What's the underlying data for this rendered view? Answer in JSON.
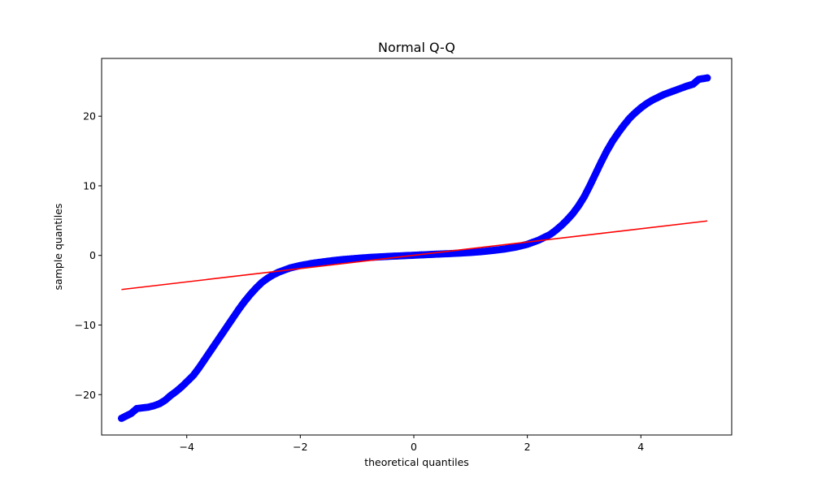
{
  "chart_data": {
    "type": "scatter",
    "title": "Normal Q-Q",
    "xlabel": "theoretical quantiles",
    "ylabel": "sample quantiles",
    "xlim": [
      -5.5,
      5.6
    ],
    "ylim": [
      -25.8,
      28.3
    ],
    "x_ticks": [
      -4,
      -2,
      0,
      2,
      4
    ],
    "x_tick_labels": [
      "−4",
      "−2",
      "0",
      "2",
      "4"
    ],
    "y_ticks": [
      -20,
      -10,
      0,
      10,
      20
    ],
    "y_tick_labels": [
      "−20",
      "−10",
      "0",
      "10",
      "20"
    ],
    "grid": false,
    "series": [
      {
        "kind": "scatter",
        "color": "#0000ff",
        "points": [
          [
            -5.15,
            -23.4
          ],
          [
            -4.98,
            -22.7
          ],
          [
            -4.88,
            -22.0
          ],
          [
            -4.78,
            -21.9
          ],
          [
            -4.68,
            -21.8
          ],
          [
            -4.58,
            -21.6
          ],
          [
            -4.48,
            -21.3
          ],
          [
            -4.38,
            -20.8
          ],
          [
            -4.28,
            -20.1
          ],
          [
            -4.18,
            -19.5
          ],
          [
            -4.08,
            -18.8
          ],
          [
            -3.98,
            -18.0
          ],
          [
            -3.88,
            -17.2
          ],
          [
            -3.78,
            -16.1
          ],
          [
            -3.68,
            -14.9
          ],
          [
            -3.58,
            -13.7
          ],
          [
            -3.48,
            -12.5
          ],
          [
            -3.38,
            -11.3
          ],
          [
            -3.28,
            -10.1
          ],
          [
            -3.18,
            -8.9
          ],
          [
            -3.08,
            -7.7
          ],
          [
            -2.98,
            -6.6
          ],
          [
            -2.88,
            -5.6
          ],
          [
            -2.78,
            -4.7
          ],
          [
            -2.68,
            -3.9
          ],
          [
            -2.58,
            -3.3
          ],
          [
            -2.48,
            -2.8
          ],
          [
            -2.38,
            -2.4
          ],
          [
            -2.28,
            -2.1
          ],
          [
            -2.18,
            -1.8
          ],
          [
            -2.0,
            -1.45
          ],
          [
            -1.8,
            -1.15
          ],
          [
            -1.6,
            -0.92
          ],
          [
            -1.4,
            -0.72
          ],
          [
            -1.2,
            -0.55
          ],
          [
            -1.0,
            -0.42
          ],
          [
            -0.8,
            -0.3
          ],
          [
            -0.6,
            -0.2
          ],
          [
            -0.4,
            -0.12
          ],
          [
            -0.2,
            -0.05
          ],
          [
            0.0,
            0.03
          ],
          [
            0.2,
            0.1
          ],
          [
            0.4,
            0.18
          ],
          [
            0.6,
            0.25
          ],
          [
            0.8,
            0.33
          ],
          [
            1.0,
            0.42
          ],
          [
            1.2,
            0.55
          ],
          [
            1.4,
            0.72
          ],
          [
            1.6,
            0.92
          ],
          [
            1.8,
            1.2
          ],
          [
            2.0,
            1.6
          ],
          [
            2.2,
            2.2
          ],
          [
            2.4,
            3.0
          ],
          [
            2.5,
            3.6
          ],
          [
            2.6,
            4.3
          ],
          [
            2.7,
            5.1
          ],
          [
            2.8,
            6.0
          ],
          [
            2.9,
            7.1
          ],
          [
            3.0,
            8.4
          ],
          [
            3.1,
            10.0
          ],
          [
            3.2,
            11.7
          ],
          [
            3.3,
            13.4
          ],
          [
            3.4,
            15.0
          ],
          [
            3.5,
            16.4
          ],
          [
            3.6,
            17.6
          ],
          [
            3.7,
            18.7
          ],
          [
            3.8,
            19.7
          ],
          [
            3.9,
            20.5
          ],
          [
            4.0,
            21.2
          ],
          [
            4.1,
            21.8
          ],
          [
            4.2,
            22.3
          ],
          [
            4.3,
            22.7
          ],
          [
            4.4,
            23.1
          ],
          [
            4.5,
            23.4
          ],
          [
            4.6,
            23.7
          ],
          [
            4.7,
            24.0
          ],
          [
            4.8,
            24.3
          ],
          [
            4.92,
            24.6
          ],
          [
            5.02,
            25.3
          ],
          [
            5.17,
            25.5
          ]
        ]
      },
      {
        "kind": "line",
        "color": "#ff0000",
        "x": [
          -5.15,
          5.17
        ],
        "y": [
          -4.9,
          4.95
        ]
      }
    ]
  }
}
